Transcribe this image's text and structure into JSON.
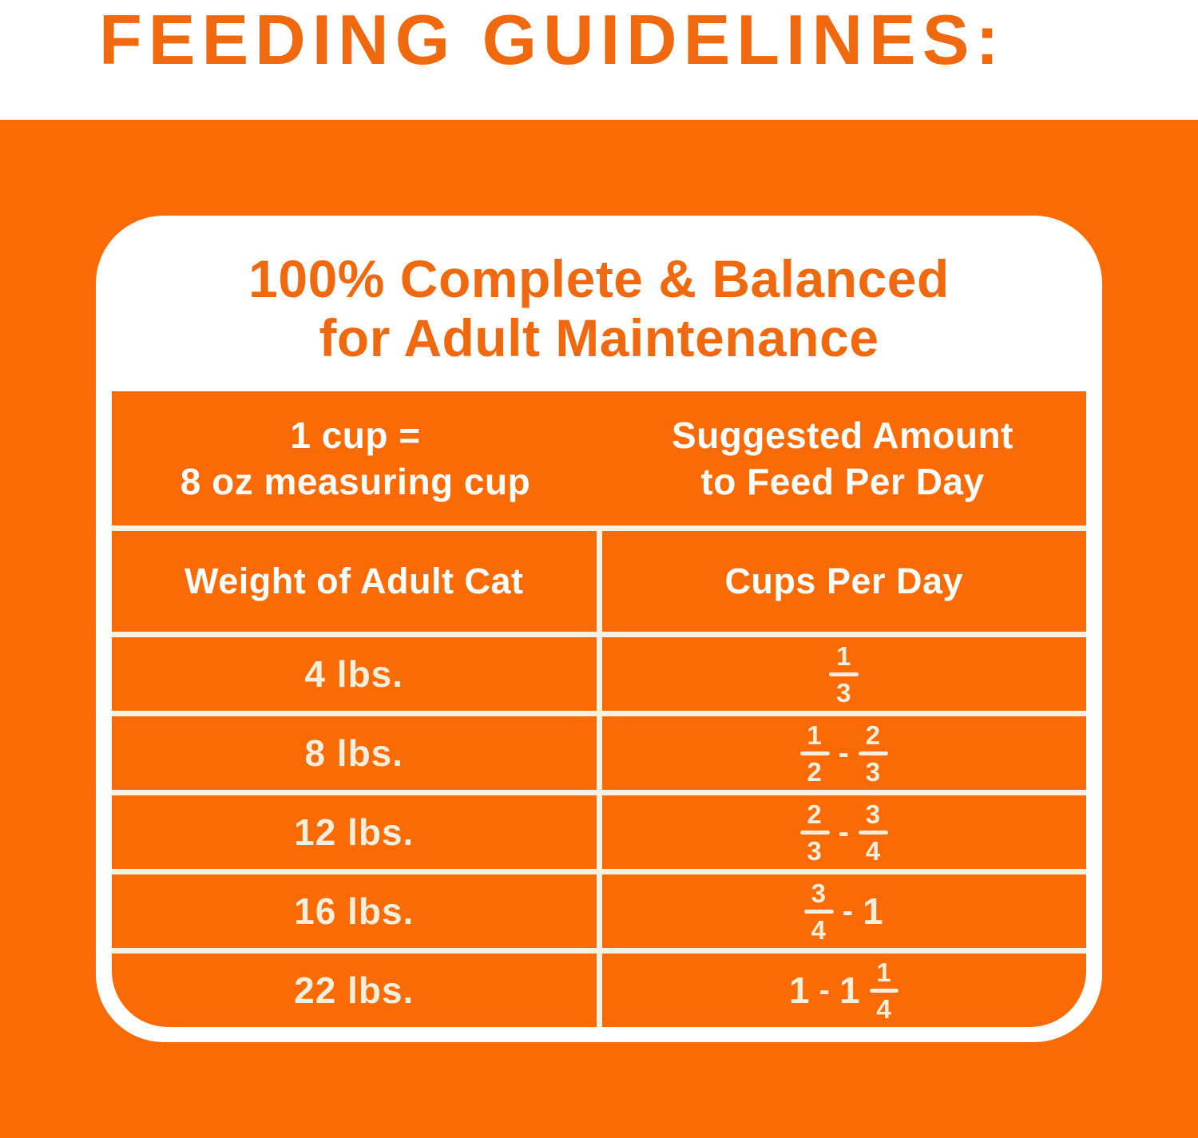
{
  "page_title": "FEEDING GUIDELINES:",
  "card": {
    "heading_line1": "100% Complete & Balanced",
    "heading_line2": "for Adult Maintenance",
    "table": {
      "header_left_line1": "1 cup =",
      "header_left_line2": "8 oz measuring cup",
      "header_right_line1": "Suggested Amount",
      "header_right_line2": "to Feed Per Day",
      "col1_header": "Weight of Adult Cat",
      "col2_header": "Cups Per Day",
      "rows": [
        {
          "weight": "4 lbs.",
          "cups_text": "1/3",
          "cups_tokens": [
            {
              "frac": [
                "1",
                "3"
              ]
            }
          ]
        },
        {
          "weight": "8 lbs.",
          "cups_text": "1/2 - 2/3",
          "cups_tokens": [
            {
              "frac": [
                "1",
                "2"
              ]
            },
            {
              "text": "-"
            },
            {
              "frac": [
                "2",
                "3"
              ]
            }
          ]
        },
        {
          "weight": "12 lbs.",
          "cups_text": "2/3 - 3/4",
          "cups_tokens": [
            {
              "frac": [
                "2",
                "3"
              ]
            },
            {
              "text": "-"
            },
            {
              "frac": [
                "3",
                "4"
              ]
            }
          ]
        },
        {
          "weight": "16 lbs.",
          "cups_text": "3/4 - 1",
          "cups_tokens": [
            {
              "frac": [
                "3",
                "4"
              ]
            },
            {
              "text": "-"
            },
            {
              "text": "1"
            }
          ]
        },
        {
          "weight": "22 lbs.",
          "cups_text": "1 - 1 1/4",
          "cups_tokens": [
            {
              "text": "1"
            },
            {
              "text": "-"
            },
            {
              "text": "1"
            },
            {
              "frac": [
                "1",
                "4"
              ]
            }
          ]
        }
      ]
    }
  },
  "colors": {
    "orange": "#FA6A05",
    "orange_text": "#F1690E",
    "cream": "#F7EFDC",
    "cream_line": "#F7F1E1",
    "white": "#FFFFFF"
  }
}
